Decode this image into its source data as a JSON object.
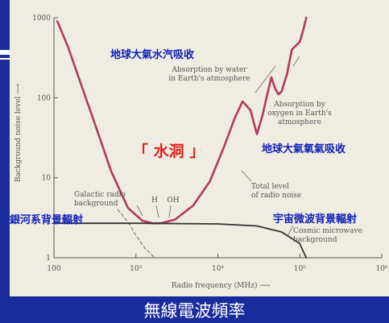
{
  "slide": {
    "caption": "無線電波頻率",
    "colors": {
      "background": "#1a2b9c",
      "panel": "#efece2",
      "curve": "#b03a5f",
      "overlay_blue": "#0f1fb8",
      "overlay_red": "#e0201c"
    }
  },
  "overlays": {
    "water_absorption": "地球大氣水汽吸收",
    "water_hole": "「 水洞 」",
    "oxygen_absorption": "地球大氣氧氣吸收",
    "galactic": "銀河系背景輻射",
    "cosmic": "宇宙微波背景輻射"
  },
  "chart_data": {
    "type": "line",
    "xlabel": "Radio frequency (MHz) ⟶",
    "ylabel": "Background noise level ⟶",
    "xscale": "log",
    "yscale": "log",
    "xlim": [
      100,
      1000000
    ],
    "ylim": [
      1,
      1000
    ],
    "x_ticks": [
      {
        "value": 100,
        "label": "100"
      },
      {
        "value": 1000,
        "label": "10³"
      },
      {
        "value": 10000,
        "label": "10⁴"
      },
      {
        "value": 100000,
        "label": "10⁵"
      },
      {
        "value": 1000000,
        "label": "10⁶"
      }
    ],
    "y_ticks": [
      {
        "value": 1000,
        "label": "1000"
      },
      {
        "value": 100,
        "label": "100"
      },
      {
        "value": 10,
        "label": "10"
      },
      {
        "value": 1,
        "label": "1"
      }
    ],
    "series": [
      {
        "name": "Total level of radio noise",
        "x": [
          110,
          150,
          200,
          300,
          500,
          800,
          1200,
          1600,
          2000,
          3000,
          5000,
          8000,
          12000,
          16000,
          20000,
          25000,
          30000,
          35000,
          40000,
          45000,
          50000,
          55000,
          60000,
          70000,
          80000,
          90000,
          100000,
          110000,
          120000
        ],
        "y": [
          900,
          420,
          180,
          55,
          12,
          4.2,
          2.9,
          2.7,
          2.7,
          3.0,
          4.5,
          9,
          25,
          55,
          90,
          70,
          35,
          60,
          110,
          180,
          130,
          110,
          120,
          200,
          400,
          450,
          500,
          700,
          1000
        ]
      },
      {
        "name": "Galactic radio background",
        "x": [
          600,
          800,
          1000,
          1300,
          1700
        ],
        "y": [
          4.0,
          2.8,
          1.9,
          1.3,
          1.0
        ],
        "dashed": true
      },
      {
        "name": "Cosmic microwave background",
        "x": [
          100,
          1000,
          10000,
          30000,
          60000,
          100000,
          110000,
          120000
        ],
        "y": [
          2.7,
          2.7,
          2.65,
          2.5,
          2.1,
          1.5,
          1.2,
          1.0
        ]
      }
    ],
    "annotations": [
      {
        "text": "Absorption by water in Earth's atmosphere"
      },
      {
        "text": "Absorption by oxygen in Earth's atmosphere"
      },
      {
        "text": "Total level of radio noise"
      },
      {
        "text": "Galactic radio background"
      },
      {
        "text": "Cosmic microwave background"
      },
      {
        "text": "H"
      },
      {
        "text": "OH"
      }
    ]
  }
}
